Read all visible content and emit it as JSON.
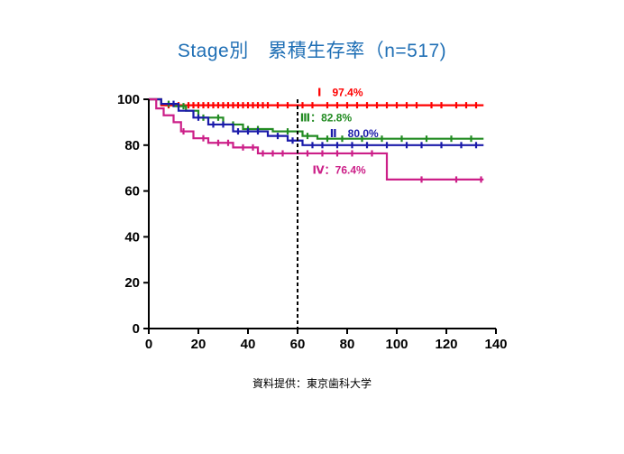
{
  "chart_data": {
    "type": "line",
    "subtype": "kaplan-meier",
    "title": "Stage別　累積生存率（n=517)",
    "xlabel": "",
    "ylabel": "",
    "xlim": [
      0,
      140
    ],
    "ylim": [
      0,
      100
    ],
    "xticks": [
      0,
      20,
      40,
      60,
      80,
      100,
      120,
      140
    ],
    "yticks": [
      0,
      20,
      40,
      60,
      80,
      100
    ],
    "grid": false,
    "reference_line": {
      "x": 60,
      "style": "dashed",
      "color": "#000000"
    },
    "series": [
      {
        "name": "Ⅰ　97.4%",
        "color": "#ff0000",
        "x": [
          0,
          3,
          5,
          135
        ],
        "y": [
          100,
          100,
          97.4,
          97.4
        ],
        "censor_x": [
          8,
          12,
          16,
          18,
          20,
          22,
          24,
          26,
          28,
          30,
          32,
          34,
          36,
          38,
          40,
          42,
          44,
          46,
          48,
          52,
          56,
          62,
          66,
          72,
          76,
          80,
          84,
          88,
          92,
          96,
          100,
          104,
          108,
          114,
          118,
          124,
          128,
          132
        ],
        "label_at": [
          68,
          103
        ]
      },
      {
        "name": "Ⅲ：82.8%",
        "color": "#228b22",
        "x": [
          0,
          5,
          10,
          15,
          20,
          30,
          38,
          50,
          62,
          68,
          135
        ],
        "y": [
          100,
          98,
          97,
          95,
          92,
          89,
          87,
          86,
          84,
          82.8,
          82.8
        ],
        "censor_x": [
          8,
          14,
          22,
          28,
          34,
          40,
          44,
          56,
          64,
          72,
          78,
          86,
          94,
          102,
          112,
          122,
          130
        ],
        "label_at": [
          61,
          92
        ]
      },
      {
        "name": "Ⅱ　80.0%",
        "color": "#1a1aaa",
        "x": [
          0,
          5,
          12,
          18,
          24,
          34,
          48,
          56,
          62,
          135
        ],
        "y": [
          100,
          98,
          95,
          92,
          89,
          86,
          84,
          82,
          80,
          80
        ],
        "censor_x": [
          10,
          20,
          26,
          30,
          36,
          40,
          44,
          52,
          58,
          66,
          70,
          76,
          82,
          88,
          96,
          104,
          110,
          118,
          126,
          132
        ],
        "label_at": [
          73,
          85
        ]
      },
      {
        "name": "Ⅳ：76.4%",
        "color": "#cc1f88",
        "x": [
          0,
          3,
          6,
          10,
          13,
          18,
          24,
          34,
          44,
          60,
          96,
          135
        ],
        "y": [
          100,
          96,
          93,
          90,
          86,
          83,
          81,
          79,
          76.4,
          76.4,
          65,
          65
        ],
        "censor_x": [
          14,
          22,
          28,
          32,
          38,
          42,
          46,
          50,
          54,
          64,
          70,
          76,
          82,
          90,
          110,
          124,
          134
        ],
        "label_at": [
          66,
          69
        ]
      }
    ]
  },
  "source_note": "資料提供：東京歯科大学"
}
